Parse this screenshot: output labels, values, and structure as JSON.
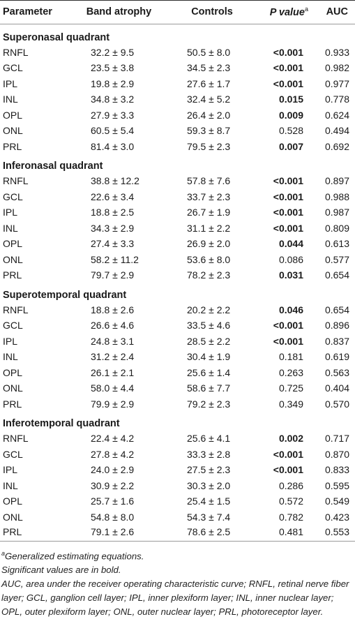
{
  "header": {
    "parameter": "Parameter",
    "band_atrophy": "Band atrophy",
    "controls": "Controls",
    "p_value": "P value",
    "p_value_sup": "a",
    "auc": "AUC"
  },
  "sections": [
    {
      "title": "Superonasal quadrant",
      "rows": [
        {
          "param": "RNFL",
          "band": "32.2 ± 9.5",
          "ctrl": "50.5 ± 8.0",
          "p": "<0.001",
          "sig": true,
          "auc": "0.933"
        },
        {
          "param": "GCL",
          "band": "23.5 ± 3.8",
          "ctrl": "34.5 ± 2.3",
          "p": "<0.001",
          "sig": true,
          "auc": "0.982"
        },
        {
          "param": "IPL",
          "band": "19.8 ± 2.9",
          "ctrl": "27.6 ± 1.7",
          "p": "<0.001",
          "sig": true,
          "auc": "0.977"
        },
        {
          "param": "INL",
          "band": "34.8 ± 3.2",
          "ctrl": "32.4 ± 5.2",
          "p": "0.015",
          "sig": true,
          "auc": "0.778"
        },
        {
          "param": "OPL",
          "band": "27.9 ± 3.3",
          "ctrl": "26.4 ± 2.0",
          "p": "0.009",
          "sig": true,
          "auc": "0.624"
        },
        {
          "param": "ONL",
          "band": "60.5 ± 5.4",
          "ctrl": "59.3 ± 8.7",
          "p": "0.528",
          "sig": false,
          "auc": "0.494"
        },
        {
          "param": "PRL",
          "band": "81.4 ± 3.0",
          "ctrl": "79.5 ± 2.3",
          "p": "0.007",
          "sig": true,
          "auc": "0.692"
        }
      ]
    },
    {
      "title": "Inferonasal quadrant",
      "rows": [
        {
          "param": "RNFL",
          "band": "38.8 ± 12.2",
          "ctrl": "57.8 ± 7.6",
          "p": "<0.001",
          "sig": true,
          "auc": "0.897"
        },
        {
          "param": "GCL",
          "band": "22.6 ± 3.4",
          "ctrl": "33.7 ± 2.3",
          "p": "<0.001",
          "sig": true,
          "auc": "0.988"
        },
        {
          "param": "IPL",
          "band": "18.8 ± 2.5",
          "ctrl": "26.7 ± 1.9",
          "p": "<0.001",
          "sig": true,
          "auc": "0.987"
        },
        {
          "param": "INL",
          "band": "34.3 ± 2.9",
          "ctrl": "31.1 ± 2.2",
          "p": "<0.001",
          "sig": true,
          "auc": "0.809"
        },
        {
          "param": "OPL",
          "band": "27.4 ± 3.3",
          "ctrl": "26.9 ± 2.0",
          "p": "0.044",
          "sig": true,
          "auc": "0.613"
        },
        {
          "param": "ONL",
          "band": "58.2 ± 11.2",
          "ctrl": "53.6 ± 8.0",
          "p": "0.086",
          "sig": false,
          "auc": "0.577"
        },
        {
          "param": "PRL",
          "band": "79.7 ± 2.9",
          "ctrl": "78.2 ± 2.3",
          "p": "0.031",
          "sig": true,
          "auc": "0.654"
        }
      ]
    },
    {
      "title": "Superotemporal quadrant",
      "rows": [
        {
          "param": "RNFL",
          "band": "18.8 ± 2.6",
          "ctrl": "20.2 ± 2.2",
          "p": "0.046",
          "sig": true,
          "auc": "0.654"
        },
        {
          "param": "GCL",
          "band": "26.6 ± 4.6",
          "ctrl": "33.5 ± 4.6",
          "p": "<0.001",
          "sig": true,
          "auc": "0.896"
        },
        {
          "param": "IPL",
          "band": "24.8 ± 3.1",
          "ctrl": "28.5 ± 2.2",
          "p": "<0.001",
          "sig": true,
          "auc": "0.837"
        },
        {
          "param": "INL",
          "band": "31.2 ± 2.4",
          "ctrl": "30.4 ± 1.9",
          "p": "0.181",
          "sig": false,
          "auc": "0.619"
        },
        {
          "param": "OPL",
          "band": "26.1 ± 2.1",
          "ctrl": "25.6 ± 1.4",
          "p": "0.263",
          "sig": false,
          "auc": "0.563"
        },
        {
          "param": "ONL",
          "band": "58.0 ± 4.4",
          "ctrl": "58.6 ± 7.7",
          "p": "0.725",
          "sig": false,
          "auc": "0.404"
        },
        {
          "param": "PRL",
          "band": "79.9 ± 2.9",
          "ctrl": "79.2 ± 2.3",
          "p": "0.349",
          "sig": false,
          "auc": "0.570"
        }
      ]
    },
    {
      "title": "Inferotemporal quadrant",
      "rows": [
        {
          "param": "RNFL",
          "band": "22.4 ± 4.2",
          "ctrl": "25.6 ± 4.1",
          "p": "0.002",
          "sig": true,
          "auc": "0.717"
        },
        {
          "param": "GCL",
          "band": "27.8 ± 4.2",
          "ctrl": "33.3 ± 2.8",
          "p": "<0.001",
          "sig": true,
          "auc": "0.870"
        },
        {
          "param": "IPL",
          "band": "24.0 ± 2.9",
          "ctrl": "27.5 ± 2.3",
          "p": "<0.001",
          "sig": true,
          "auc": "0.833"
        },
        {
          "param": "INL",
          "band": "30.9 ± 2.2",
          "ctrl": "30.3 ± 2.0",
          "p": "0.286",
          "sig": false,
          "auc": "0.595"
        },
        {
          "param": "OPL",
          "band": "25.7 ± 1.6",
          "ctrl": "25.4 ± 1.5",
          "p": "0.572",
          "sig": false,
          "auc": "0.549"
        },
        {
          "param": "ONL",
          "band": "54.8 ± 8.0",
          "ctrl": "54.3 ± 7.4",
          "p": "0.782",
          "sig": false,
          "auc": "0.423"
        },
        {
          "param": "PRL",
          "band": "79.1 ± 2.6",
          "ctrl": "78.6 ± 2.5",
          "p": "0.481",
          "sig": false,
          "auc": "0.553"
        }
      ]
    }
  ],
  "footnotes": {
    "a_mark": "a",
    "a_text": "Generalized estimating equations.",
    "significance": "Significant values are in bold.",
    "abbreviations": "AUC, area under the receiver operating characteristic curve; RNFL, retinal nerve fiber layer; GCL, ganglion cell layer; IPL, inner plexiform layer; INL, inner nuclear layer; OPL, outer plexiform layer; ONL, outer nuclear layer; PRL, photoreceptor layer."
  }
}
